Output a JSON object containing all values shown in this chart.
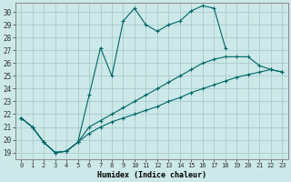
{
  "xlabel": "Humidex (Indice chaleur)",
  "background_color": "#cce8e8",
  "grid_color": "#aacccc",
  "line_color": "#006666",
  "xlim": [
    -0.5,
    23.5
  ],
  "ylim": [
    18.5,
    30.7
  ],
  "xtick_labels": [
    "0",
    "1",
    "2",
    "3",
    "4",
    "5",
    "6",
    "7",
    "8",
    "9",
    "10",
    "11",
    "12",
    "13",
    "14",
    "15",
    "16",
    "17",
    "18",
    "19",
    "20",
    "21",
    "22",
    "23"
  ],
  "ytick_values": [
    19,
    20,
    21,
    22,
    23,
    24,
    25,
    26,
    27,
    28,
    29,
    30
  ],
  "line1_x": [
    0,
    1,
    2,
    3,
    4,
    5,
    6,
    7,
    8,
    9,
    10,
    11,
    12,
    13,
    14,
    15,
    16,
    17,
    18
  ],
  "line1_y": [
    21.7,
    21.0,
    19.8,
    19.0,
    19.1,
    19.8,
    23.5,
    27.2,
    25.0,
    29.3,
    30.3,
    29.0,
    28.5,
    29.0,
    29.3,
    30.1,
    30.5,
    30.3,
    27.2
  ],
  "line2_x": [
    0,
    1,
    2,
    3,
    4,
    5,
    6,
    7,
    8,
    9,
    10,
    11,
    12,
    13,
    14,
    15,
    16,
    17,
    18,
    19,
    20,
    21,
    22,
    23
  ],
  "line2_y": [
    21.7,
    21.0,
    19.8,
    19.0,
    19.1,
    19.8,
    20.5,
    21.0,
    21.4,
    21.7,
    22.0,
    22.3,
    22.6,
    23.0,
    23.3,
    23.7,
    24.0,
    24.3,
    24.6,
    24.9,
    25.1,
    25.3,
    25.5,
    25.3
  ],
  "line3_x": [
    0,
    1,
    2,
    3,
    4,
    5,
    6,
    7,
    8,
    9,
    10,
    11,
    12,
    13,
    14,
    15,
    16,
    17,
    18,
    19,
    20,
    21,
    22,
    23
  ],
  "line3_y": [
    21.7,
    21.0,
    19.8,
    19.0,
    19.1,
    19.8,
    21.0,
    21.5,
    22.0,
    22.5,
    23.0,
    23.5,
    24.0,
    24.5,
    25.0,
    25.5,
    26.0,
    26.3,
    26.5,
    26.5,
    26.5,
    25.8,
    25.5,
    25.3
  ]
}
